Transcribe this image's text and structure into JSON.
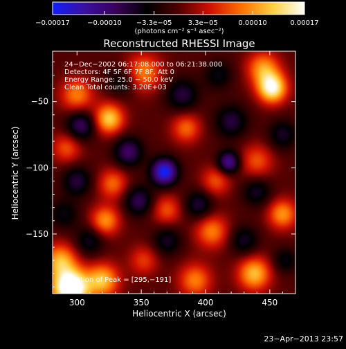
{
  "chart_data": {
    "type": "heatmap",
    "title": "Reconstructed RHESSI Image",
    "xlabel": "Heliocentric X (arcsec)",
    "ylabel": "Heliocentric Y (arcsec)",
    "xlim": [
      281,
      470
    ],
    "ylim": [
      -195,
      -12
    ],
    "x_ticks": [
      300,
      350,
      400,
      450
    ],
    "x_tick_labels": [
      "300",
      "350",
      "400",
      "450"
    ],
    "y_ticks": [
      -50,
      -100,
      -150
    ],
    "y_tick_labels": [
      "−50",
      "−100",
      "−150"
    ],
    "colorbar": {
      "range": [
        -0.00017,
        0.00017
      ],
      "ticks": [
        -0.00017,
        -0.0001,
        -3.3e-05,
        3.3e-05,
        0.0001,
        0.00017
      ],
      "tick_labels": [
        "−0.00017",
        "−0.00010",
        "−3.3e−05",
        "3.3e−05",
        "0.00010",
        "0.00017"
      ],
      "unit_label": "(photons cm⁻² s⁻¹ asec⁻²)",
      "colormap": [
        "#1020ff",
        "#3a10a0",
        "#3a005a",
        "#000000",
        "#500000",
        "#d01000",
        "#ff7000",
        "#ffd040",
        "#ffffff"
      ]
    },
    "annotations": [
      "24−Dec−2002 06:17:08.000 to 06:21:38.000",
      "Detectors: 4F 5F 6F 7F 8F, Att 0",
      "Energy Range: 25.0 − 50.0 keV",
      "Clean    Total counts: 3.20E+03"
    ],
    "peak_label": "Location of Peak = [295,−191]",
    "peak": {
      "x": 295,
      "y": -191
    },
    "blobs": [
      {
        "x": 295,
        "y": -191,
        "v": 0.00022,
        "s": 10
      },
      {
        "x": 320,
        "y": -185,
        "v": 0.00012,
        "s": 9
      },
      {
        "x": 287,
        "y": -170,
        "v": 0.00011,
        "s": 9
      },
      {
        "x": 322,
        "y": -140,
        "v": 0.0001,
        "s": 8
      },
      {
        "x": 328,
        "y": -112,
        "v": 8e-05,
        "s": 8
      },
      {
        "x": 325,
        "y": -63,
        "v": 0.00013,
        "s": 8
      },
      {
        "x": 300,
        "y": -45,
        "v": 9e-05,
        "s": 9
      },
      {
        "x": 292,
        "y": -85,
        "v": 7e-05,
        "s": 8
      },
      {
        "x": 352,
        "y": -28,
        "v": 9e-05,
        "s": 10
      },
      {
        "x": 385,
        "y": -70,
        "v": 8e-05,
        "s": 8
      },
      {
        "x": 370,
        "y": -132,
        "v": 7e-05,
        "s": 8
      },
      {
        "x": 405,
        "y": -148,
        "v": 9e-05,
        "s": 9
      },
      {
        "x": 408,
        "y": -110,
        "v": 7e-05,
        "s": 8
      },
      {
        "x": 445,
        "y": -25,
        "v": 0.0001,
        "s": 9
      },
      {
        "x": 452,
        "y": -40,
        "v": 0.00016,
        "s": 8
      },
      {
        "x": 440,
        "y": -95,
        "v": 7e-05,
        "s": 9
      },
      {
        "x": 460,
        "y": -135,
        "v": 0.0001,
        "s": 8
      },
      {
        "x": 438,
        "y": -180,
        "v": 0.00012,
        "s": 9
      },
      {
        "x": 392,
        "y": -185,
        "v": 9e-05,
        "s": 9
      },
      {
        "x": 352,
        "y": -170,
        "v": 6e-05,
        "s": 8
      },
      {
        "x": 368,
        "y": -103,
        "v": -0.00017,
        "s": 7
      },
      {
        "x": 418,
        "y": -96,
        "v": -0.00012,
        "s": 6
      },
      {
        "x": 303,
        "y": -68,
        "v": -9e-05,
        "s": 8
      },
      {
        "x": 340,
        "y": -88,
        "v": -9e-05,
        "s": 8
      },
      {
        "x": 382,
        "y": -45,
        "v": -7e-05,
        "s": 9
      },
      {
        "x": 300,
        "y": -110,
        "v": -7e-05,
        "s": 8
      },
      {
        "x": 348,
        "y": -125,
        "v": -8e-05,
        "s": 8
      },
      {
        "x": 420,
        "y": -65,
        "v": -7e-05,
        "s": 9
      },
      {
        "x": 440,
        "y": -118,
        "v": -6e-05,
        "s": 8
      },
      {
        "x": 395,
        "y": -128,
        "v": -7e-05,
        "s": 8
      },
      {
        "x": 430,
        "y": -155,
        "v": -6e-05,
        "s": 8
      },
      {
        "x": 460,
        "y": -75,
        "v": -6e-05,
        "s": 8
      },
      {
        "x": 310,
        "y": -155,
        "v": -6e-05,
        "s": 8
      },
      {
        "x": 370,
        "y": -155,
        "v": -6e-05,
        "s": 8
      },
      {
        "x": 290,
        "y": -135,
        "v": -5e-05,
        "s": 8
      },
      {
        "x": 335,
        "y": -35,
        "v": -5e-05,
        "s": 8
      },
      {
        "x": 410,
        "y": -30,
        "v": -5e-05,
        "s": 8
      },
      {
        "x": 462,
        "y": -170,
        "v": -5e-05,
        "s": 7
      }
    ]
  },
  "footer": {
    "timestamp": "23−Apr−2013 23:57"
  }
}
